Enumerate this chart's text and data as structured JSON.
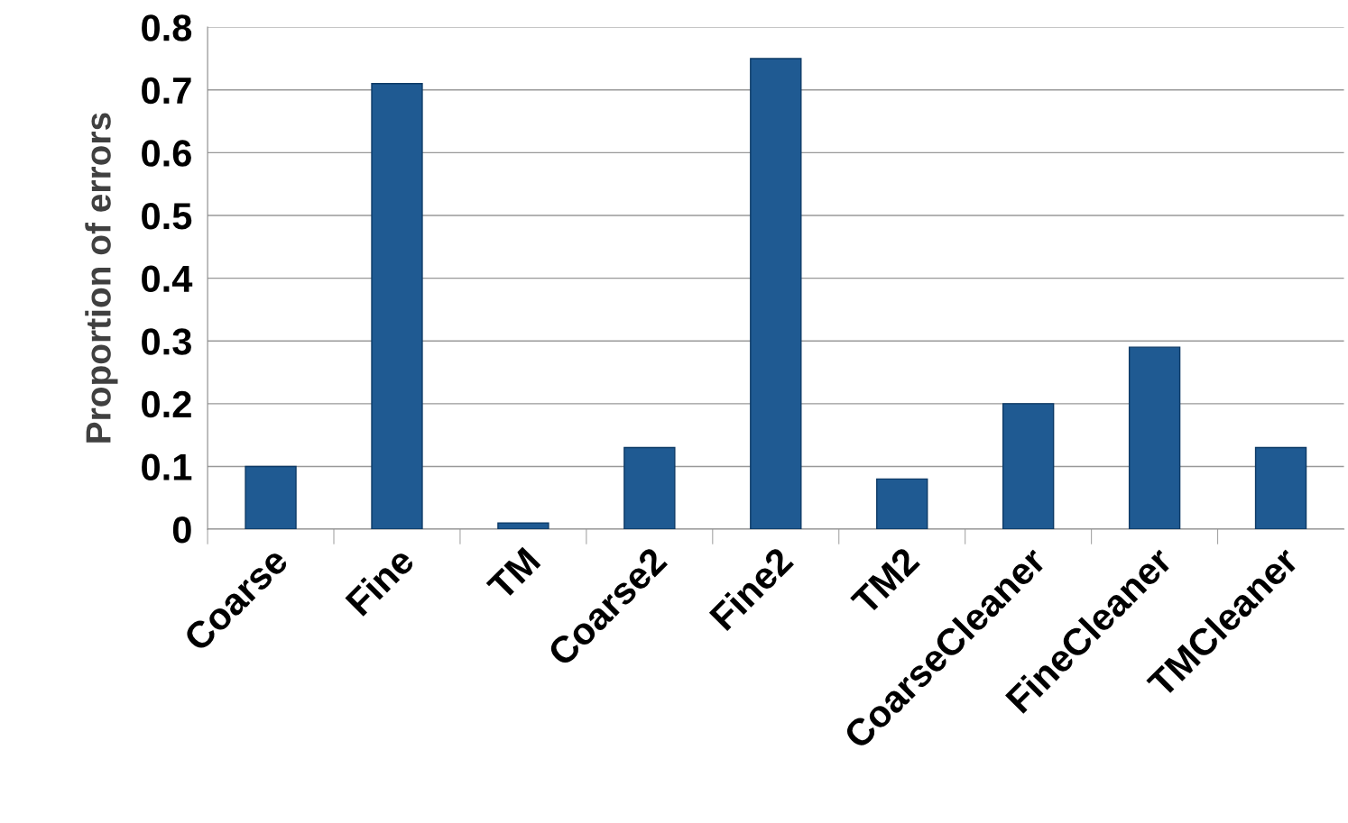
{
  "chart_data": {
    "type": "bar",
    "ylabel": "Proportion of errors",
    "categories": [
      "Coarse",
      "Fine",
      "TM",
      "Coarse2",
      "Fine2",
      "TM2",
      "CoarseCleaner",
      "FineCleaner",
      "TMCleaner"
    ],
    "values": [
      0.1,
      0.71,
      0.01,
      0.13,
      0.75,
      0.08,
      0.2,
      0.29,
      0.13
    ],
    "color": "#1f5a92",
    "ylim": [
      0,
      0.8
    ],
    "yticks": [
      0,
      0.1,
      0.2,
      0.3,
      0.4,
      0.5,
      0.6,
      0.7,
      0.8
    ],
    "grid": "y",
    "legend": false
  }
}
